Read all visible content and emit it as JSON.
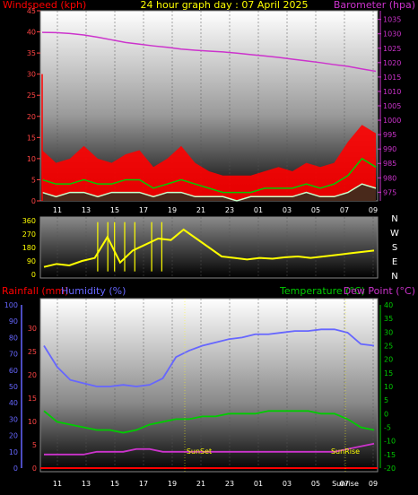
{
  "title": "24 hour graph day : 07 April 2025",
  "colors": {
    "wind": "#ff0000",
    "baro": "#cc33cc",
    "gust_fill": "#ff0000",
    "avg_line": "#00cc00",
    "light_line": "#ccffcc",
    "dir_line": "#ffff00",
    "humidity": "#6666ff",
    "rain": "#ff0000",
    "temp": "#00cc00",
    "dew": "#cc33cc",
    "tick_left_red": "#ff4444",
    "tick_blue": "#6666ff",
    "tick_green": "#00cc00",
    "tick_mag": "#cc33cc",
    "grid": "#555555"
  },
  "time_ticks": [
    "11",
    "13",
    "15",
    "17",
    "19",
    "21",
    "23",
    "01",
    "03",
    "05",
    "07",
    "09"
  ],
  "chart_data": [
    {
      "type": "line",
      "name": "wind_baro",
      "left_axis_label": "Windspeed (kph)",
      "right_axis_label": "Barometer (hpa)",
      "left_ticks": [
        "0",
        "5",
        "10",
        "15",
        "20",
        "25",
        "30",
        "35",
        "40",
        "45"
      ],
      "right_ticks": [
        "975",
        "980",
        "985",
        "990",
        "995",
        "1000",
        "1005",
        "1010",
        "1015",
        "1020",
        "1025",
        "1030",
        "1035"
      ],
      "left_range": [
        0,
        45
      ],
      "right_range": [
        972,
        1038
      ],
      "barometer": [
        1030.5,
        1030.4,
        1030.1,
        1029.6,
        1028.8,
        1027.9,
        1027.0,
        1026.4,
        1025.8,
        1025.3,
        1024.7,
        1024.3,
        1024.0,
        1023.7,
        1023.3,
        1022.8,
        1022.3,
        1021.8,
        1021.2,
        1020.6,
        1020.0,
        1019.3,
        1018.7,
        1017.8,
        1017.0
      ],
      "gust": [
        12,
        9,
        10,
        13,
        10,
        9,
        11,
        12,
        8,
        10,
        13,
        9,
        7,
        6,
        6,
        6,
        7,
        8,
        7,
        9,
        8,
        9,
        14,
        18,
        16
      ],
      "avg": [
        5,
        4,
        4,
        5,
        4,
        4,
        5,
        5,
        3,
        4,
        5,
        4,
        3,
        2,
        2,
        2,
        3,
        3,
        3,
        4,
        3,
        4,
        6,
        10,
        8
      ],
      "low": [
        2,
        1,
        2,
        2,
        1,
        2,
        2,
        2,
        1,
        2,
        2,
        1,
        1,
        1,
        0,
        1,
        1,
        1,
        1,
        2,
        1,
        1,
        2,
        4,
        3
      ]
    },
    {
      "type": "scatter",
      "name": "wind_direction",
      "left_ticks": [
        "0",
        "90",
        "180",
        "270",
        "360"
      ],
      "left_range": [
        0,
        360
      ],
      "compass": [
        "N",
        "W",
        "S",
        "E",
        "N"
      ],
      "direction": [
        50,
        70,
        60,
        90,
        110,
        250,
        80,
        160,
        200,
        240,
        230,
        300,
        240,
        180,
        120,
        110,
        100,
        110,
        105,
        115,
        120,
        110,
        120,
        130,
        140,
        150,
        160
      ]
    },
    {
      "type": "line",
      "name": "rain_hum_temp",
      "left_axis_label_1": "Rainfall (mm)",
      "left_axis_label_2": "Humidity (%)",
      "right_axis_label_1": "Temperature (°C)",
      "right_axis_label_2": "Dew Point (°C)",
      "rain_ticks": [
        "0",
        "5",
        "10",
        "15",
        "20",
        "25",
        "30"
      ],
      "hum_ticks": [
        "0",
        "10",
        "20",
        "30",
        "40",
        "50",
        "60",
        "70",
        "80",
        "90",
        "100"
      ],
      "temp_ticks": [
        "-20",
        "-15",
        "-10",
        "-5",
        "0",
        "5",
        "10",
        "15",
        "20",
        "25",
        "30",
        "35",
        "40"
      ],
      "hum_range": [
        0,
        100
      ],
      "temp_range": [
        -20,
        40
      ],
      "humidity": [
        75,
        62,
        54,
        52,
        50,
        50,
        51,
        50,
        51,
        55,
        68,
        72,
        75,
        77,
        79,
        80,
        82,
        82,
        83,
        84,
        84,
        85,
        85,
        83,
        76,
        75
      ],
      "temperature": [
        -11,
        -7,
        -6,
        -5,
        -4,
        -4,
        -3,
        -4,
        -6,
        -7,
        -8,
        -8,
        -9,
        -9,
        -10,
        -10,
        -10,
        -11,
        -11,
        -11,
        -11,
        -10,
        -10,
        -8,
        -5,
        -4
      ],
      "dewpoint": [
        -15,
        -15,
        -15,
        -15,
        -14,
        -14,
        -14,
        -13,
        -13,
        -14,
        -14,
        -14,
        -14,
        -14,
        -14,
        -14,
        -14,
        -14,
        -14,
        -14,
        -14,
        -14,
        -14,
        -13,
        -12,
        -11
      ],
      "rain": [
        0,
        0,
        0,
        0,
        0,
        0,
        0,
        0,
        0,
        0,
        0,
        0,
        0,
        0,
        0,
        0,
        0,
        0,
        0,
        0,
        0,
        0,
        0,
        0,
        0,
        0
      ],
      "annotations": [
        "SunSet",
        "SunRise",
        "Sunrise"
      ]
    }
  ]
}
